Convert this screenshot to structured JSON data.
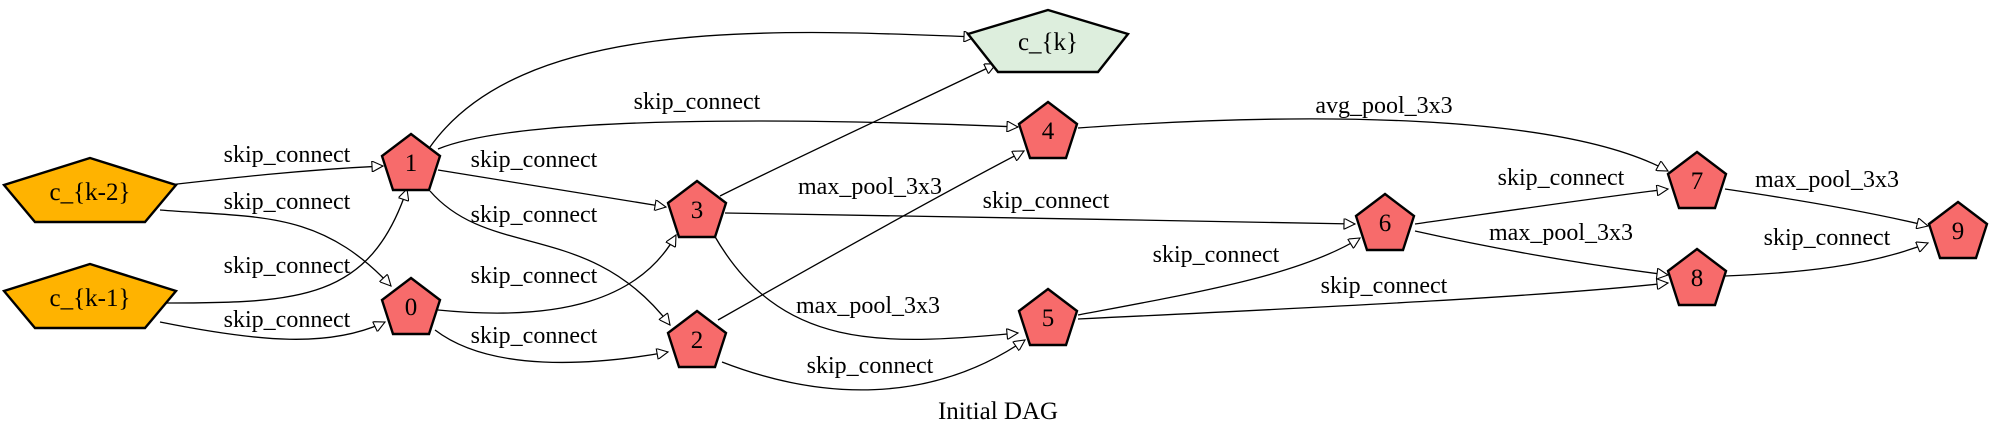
{
  "caption": "Initial DAG",
  "colors": {
    "input_fill": "#FFB300",
    "op_fill": "#F76B6B",
    "output_fill": "#DDEEDD",
    "stroke": "#000000"
  },
  "nodes": [
    {
      "id": "ck2",
      "label": "c_{k-2}",
      "kind": "input"
    },
    {
      "id": "ck1",
      "label": "c_{k-1}",
      "kind": "input"
    },
    {
      "id": "n0",
      "label": "0",
      "kind": "op"
    },
    {
      "id": "n1",
      "label": "1",
      "kind": "op"
    },
    {
      "id": "n2",
      "label": "2",
      "kind": "op"
    },
    {
      "id": "n3",
      "label": "3",
      "kind": "op"
    },
    {
      "id": "n4",
      "label": "4",
      "kind": "op"
    },
    {
      "id": "n5",
      "label": "5",
      "kind": "op"
    },
    {
      "id": "n6",
      "label": "6",
      "kind": "op"
    },
    {
      "id": "n7",
      "label": "7",
      "kind": "op"
    },
    {
      "id": "n8",
      "label": "8",
      "kind": "op"
    },
    {
      "id": "n9",
      "label": "9",
      "kind": "op"
    },
    {
      "id": "ck",
      "label": "c_{k}",
      "kind": "output"
    }
  ],
  "edges": [
    {
      "from": "ck2",
      "to": "n1",
      "label": "skip_connect"
    },
    {
      "from": "ck2",
      "to": "n0",
      "label": "skip_connect"
    },
    {
      "from": "ck1",
      "to": "n1",
      "label": "skip_connect"
    },
    {
      "from": "ck1",
      "to": "n0",
      "label": "skip_connect"
    },
    {
      "from": "n1",
      "to": "ck",
      "label": ""
    },
    {
      "from": "n1",
      "to": "n4",
      "label": "skip_connect"
    },
    {
      "from": "n1",
      "to": "n3",
      "label": "skip_connect"
    },
    {
      "from": "n1",
      "to": "n2",
      "label": "skip_connect"
    },
    {
      "from": "n0",
      "to": "n3",
      "label": "skip_connect"
    },
    {
      "from": "n0",
      "to": "n2",
      "label": "skip_connect"
    },
    {
      "from": "n3",
      "to": "ck",
      "label": ""
    },
    {
      "from": "n3",
      "to": "n6",
      "label": "skip_connect"
    },
    {
      "from": "n3",
      "to": "n5",
      "label": "max_pool_3x3"
    },
    {
      "from": "n2",
      "to": "n4",
      "label": "max_pool_3x3"
    },
    {
      "from": "n2",
      "to": "n5",
      "label": "skip_connect"
    },
    {
      "from": "n4",
      "to": "n7",
      "label": "avg_pool_3x3"
    },
    {
      "from": "n5",
      "to": "n6",
      "label": "skip_connect"
    },
    {
      "from": "n5",
      "to": "n8",
      "label": "skip_connect"
    },
    {
      "from": "n6",
      "to": "n7",
      "label": "skip_connect"
    },
    {
      "from": "n6",
      "to": "n8",
      "label": "max_pool_3x3"
    },
    {
      "from": "n7",
      "to": "n9",
      "label": "max_pool_3x3"
    },
    {
      "from": "n8",
      "to": "n9",
      "label": "skip_connect"
    }
  ]
}
